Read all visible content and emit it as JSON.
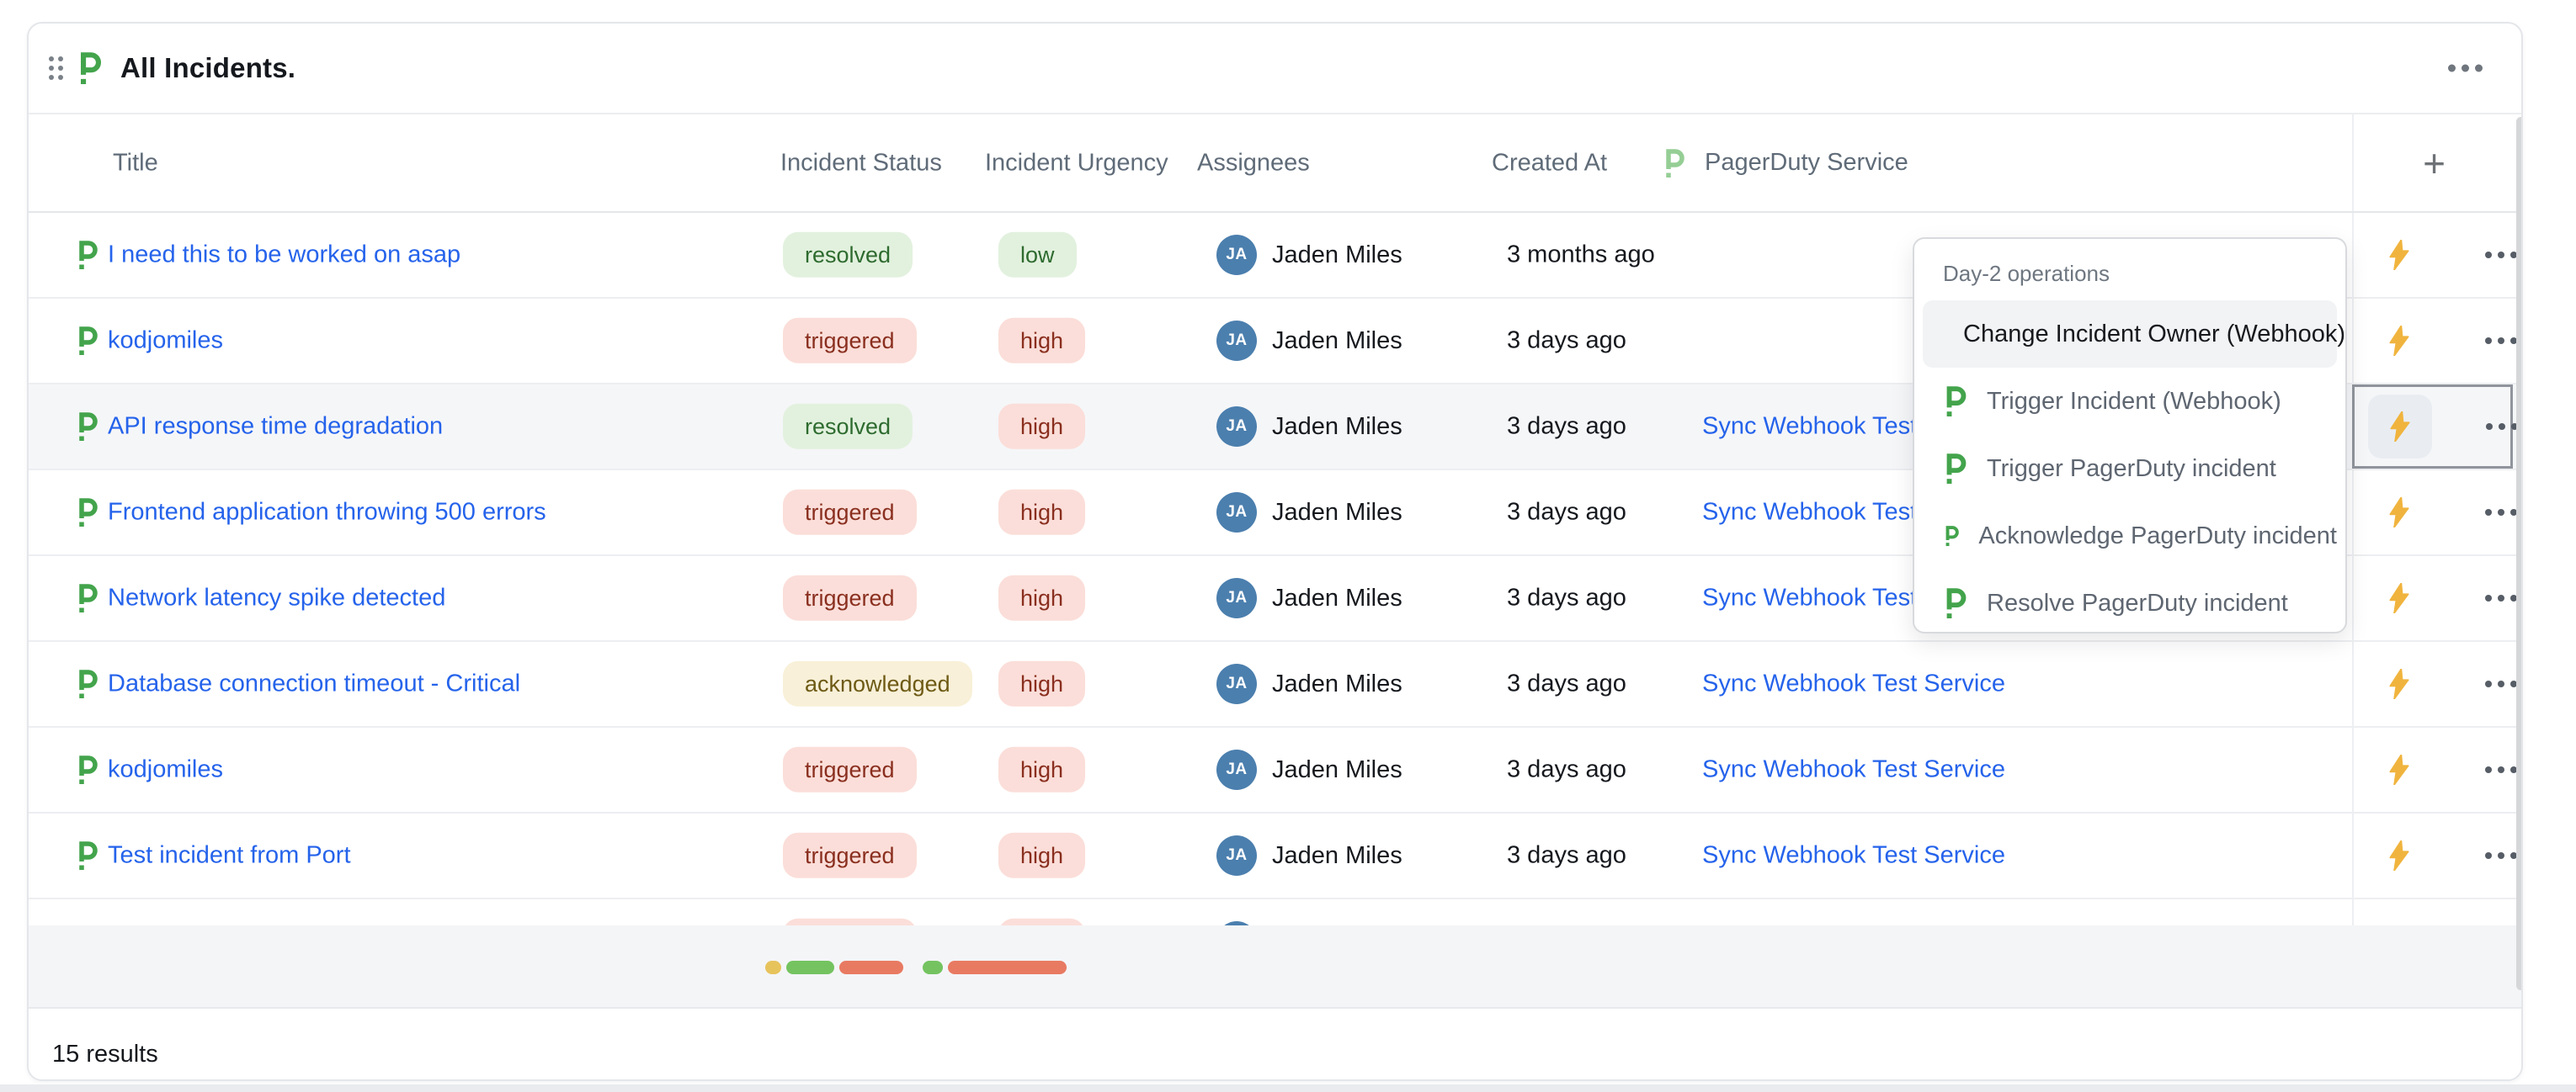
{
  "widget": {
    "title": "All Incidents.",
    "results_count": "15 results"
  },
  "table": {
    "columns": [
      "Title",
      "Incident Status",
      "Incident Urgency",
      "Assignees",
      "Created At",
      "PagerDuty Service"
    ],
    "add_column_label": "+"
  },
  "rows": [
    {
      "title": "I need this to be worked on asap",
      "status": "resolved",
      "status_class": "b-green",
      "urgency": "low",
      "urgency_class": "b-green",
      "assignee": "Jaden Miles",
      "avatar": "JA",
      "created_at": "3 months ago",
      "service": "",
      "row_class": "",
      "actions_class": ""
    },
    {
      "title": "kodjomiles",
      "status": "triggered",
      "status_class": "b-red",
      "urgency": "high",
      "urgency_class": "b-red",
      "assignee": "Jaden Miles",
      "avatar": "JA",
      "created_at": "3 days ago",
      "service": "",
      "row_class": "",
      "actions_class": ""
    },
    {
      "title": "API response time degradation",
      "status": "resolved",
      "status_class": "b-green",
      "urgency": "high",
      "urgency_class": "b-red",
      "assignee": "Jaden Miles",
      "avatar": "JA",
      "created_at": "3 days ago",
      "service": "Sync Webhook Test Service",
      "row_class": "row-selected",
      "actions_class": "cell-focused"
    },
    {
      "title": "Frontend application throwing 500 errors",
      "status": "triggered",
      "status_class": "b-red",
      "urgency": "high",
      "urgency_class": "b-red",
      "assignee": "Jaden Miles",
      "avatar": "JA",
      "created_at": "3 days ago",
      "service": "Sync Webhook Test Service",
      "row_class": "",
      "actions_class": ""
    },
    {
      "title": "Network latency spike detected",
      "status": "triggered",
      "status_class": "b-red",
      "urgency": "high",
      "urgency_class": "b-red",
      "assignee": "Jaden Miles",
      "avatar": "JA",
      "created_at": "3 days ago",
      "service": "Sync Webhook Test Service",
      "row_class": "",
      "actions_class": ""
    },
    {
      "title": "Database connection timeout - Critical",
      "status": "acknowledged",
      "status_class": "b-yellow",
      "urgency": "high",
      "urgency_class": "b-red",
      "assignee": "Jaden Miles",
      "avatar": "JA",
      "created_at": "3 days ago",
      "service": "Sync Webhook Test Service",
      "row_class": "",
      "actions_class": ""
    },
    {
      "title": "kodjomiles",
      "status": "triggered",
      "status_class": "b-red",
      "urgency": "high",
      "urgency_class": "b-red",
      "assignee": "Jaden Miles",
      "avatar": "JA",
      "created_at": "3 days ago",
      "service": "Sync Webhook Test Service",
      "row_class": "",
      "actions_class": ""
    },
    {
      "title": "Test incident from Port",
      "status": "triggered",
      "status_class": "b-red",
      "urgency": "high",
      "urgency_class": "b-red",
      "assignee": "Jaden Miles",
      "avatar": "JA",
      "created_at": "3 days ago",
      "service": "Sync Webhook Test Service",
      "row_class": "",
      "actions_class": ""
    },
    {
      "title": "",
      "status": "triggered",
      "status_class": "b-red",
      "urgency": "high",
      "urgency_class": "b-red",
      "assignee": "",
      "avatar": "JA",
      "created_at": "",
      "service": "",
      "row_class": "row-partial",
      "actions_class": ""
    }
  ],
  "dropdown": {
    "header": "Day-2 operations",
    "items": [
      {
        "label": "Change Incident Owner (Webhook)",
        "class": "active"
      },
      {
        "label": "Trigger Incident (Webhook)",
        "class": ""
      },
      {
        "label": "Trigger PagerDuty incident",
        "class": ""
      },
      {
        "label": "Acknowledge PagerDuty incident",
        "class": ""
      },
      {
        "label": "Resolve PagerDuty incident",
        "class": ""
      }
    ]
  },
  "summary": {
    "status_distribution": [
      {
        "color": "yellow",
        "width": 19
      },
      {
        "color": "green",
        "width": 57
      },
      {
        "color": "salmon",
        "width": 76
      }
    ],
    "urgency_distribution": [
      {
        "color": "green",
        "width": 24
      },
      {
        "color": "salmon",
        "width": 141
      }
    ]
  },
  "colors": {
    "pagerduty_green": "#43A44C",
    "pagerduty_green_light": "#95CE95",
    "link_blue": "#2563EB",
    "bolt_amber": "#F0B43E",
    "avatar_blue": "#4B7FAE",
    "badge_green_bg": "#e2f1de",
    "badge_red_bg": "#fbded9",
    "badge_yellow_bg": "#f8f0d8"
  }
}
